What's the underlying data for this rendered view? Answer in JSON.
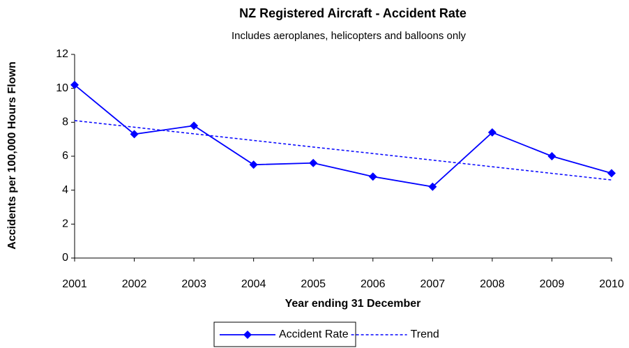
{
  "chart_data": {
    "type": "line",
    "title": "NZ Registered  Aircraft - Accident  Rate",
    "subtitle": "Includes aeroplanes, helicopters and balloons only",
    "x_label": "Year ending 31 December",
    "y_label": "Accidents per 100,000 Hours Flown",
    "x": [
      2001,
      2002,
      2003,
      2004,
      2005,
      2006,
      2007,
      2008,
      2009,
      2010
    ],
    "series": [
      {
        "name": "Accident Rate",
        "color": "#0000ff",
        "style": "solid",
        "marker": "diamond",
        "values": [
          10.2,
          7.3,
          7.8,
          5.5,
          5.6,
          4.8,
          4.2,
          7.4,
          6.0,
          5.0
        ]
      },
      {
        "name": "Trend",
        "color": "#0000ff",
        "style": "dashed",
        "values": [
          8.1,
          7.71,
          7.32,
          6.93,
          6.54,
          6.16,
          5.77,
          5.38,
          4.99,
          4.6
        ]
      }
    ],
    "xlim": [
      2001,
      2010
    ],
    "xticks": [
      2001,
      2002,
      2003,
      2004,
      2005,
      2006,
      2007,
      2008,
      2009,
      2010
    ],
    "ylim": [
      0,
      12
    ],
    "yticks": [
      0,
      2,
      4,
      6,
      8,
      10,
      12
    ],
    "legend": "bottom"
  }
}
